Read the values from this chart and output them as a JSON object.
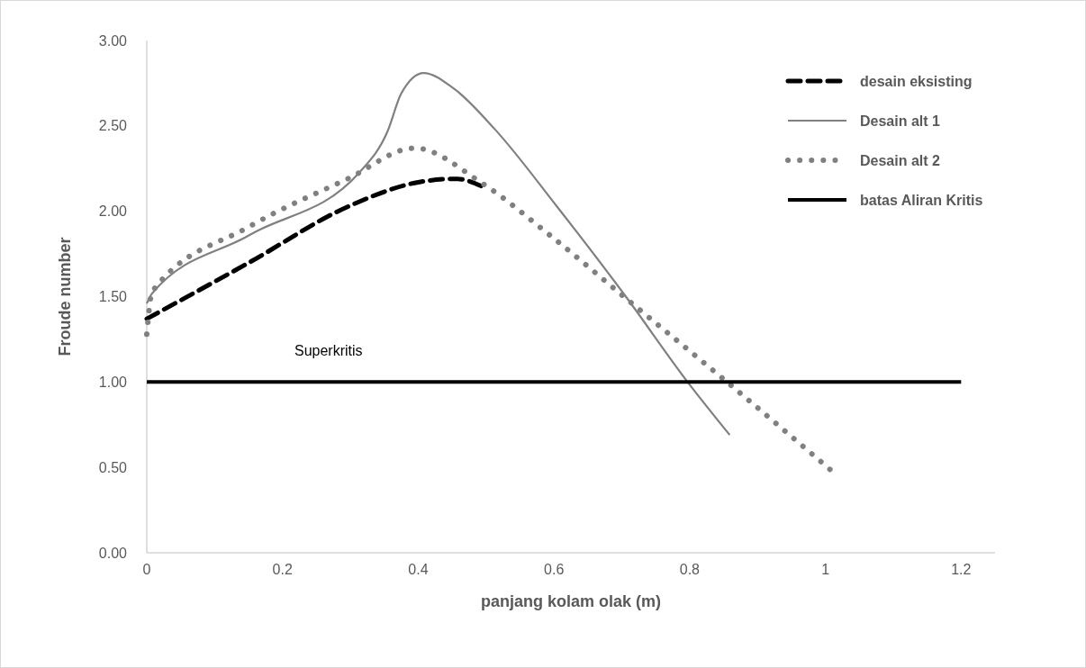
{
  "chart_data": {
    "type": "line",
    "xlabel": "panjang kolam olak (m)",
    "ylabel": "Froude number",
    "xlim": [
      0,
      1.25
    ],
    "ylim": [
      0,
      3
    ],
    "xticks": [
      0,
      0.2,
      0.4,
      0.6,
      0.8,
      1,
      1.2
    ],
    "yticks": [
      {
        "value": 0,
        "label": "0.00"
      },
      {
        "value": 0.5,
        "label": "0.50"
      },
      {
        "value": 1,
        "label": "1.00"
      },
      {
        "value": 1.5,
        "label": "1.50"
      },
      {
        "value": 2,
        "label": "2.00"
      },
      {
        "value": 2.5,
        "label": "2.50"
      },
      {
        "value": 3,
        "label": "3.00"
      }
    ],
    "grid": false,
    "legend": "top right",
    "marker": "none",
    "annotations": [
      "Superkritis"
    ],
    "series": [
      {
        "name": "desain eksisting",
        "color": "#000000",
        "line_style": "dashed",
        "x": [
          0,
          0.151,
          0.298,
          0.4,
          0.456,
          0.497
        ],
        "values": [
          1.37,
          1.7,
          2.03,
          2.17,
          2.19,
          2.14
        ]
      },
      {
        "name": "Desain alt 1",
        "color": "#808080",
        "line_style": "solid",
        "x": [
          0,
          0.008,
          0.151,
          0.314,
          0.355,
          0.375,
          0.408,
          0.452,
          0.513,
          0.604,
          0.706,
          0.797,
          0.859
        ],
        "values": [
          1.46,
          1.52,
          1.86,
          2.23,
          2.47,
          2.69,
          2.81,
          2.72,
          2.48,
          2.03,
          1.5,
          1.0,
          0.69
        ]
      },
      {
        "name": "Desain alt 2",
        "color": "#808080",
        "line_style": "dotted",
        "x": [
          0,
          0.008,
          0.151,
          0.296,
          0.395,
          0.492,
          0.594,
          0.706,
          0.849,
          1.018
        ],
        "values": [
          1.28,
          1.53,
          1.91,
          2.19,
          2.37,
          2.17,
          1.86,
          1.49,
          1.02,
          0.45
        ]
      },
      {
        "name": "batas Aliran Kritis",
        "color": "#000000",
        "line_style": "solid",
        "x": [
          0,
          1.2
        ],
        "values": [
          1,
          1
        ]
      }
    ]
  }
}
